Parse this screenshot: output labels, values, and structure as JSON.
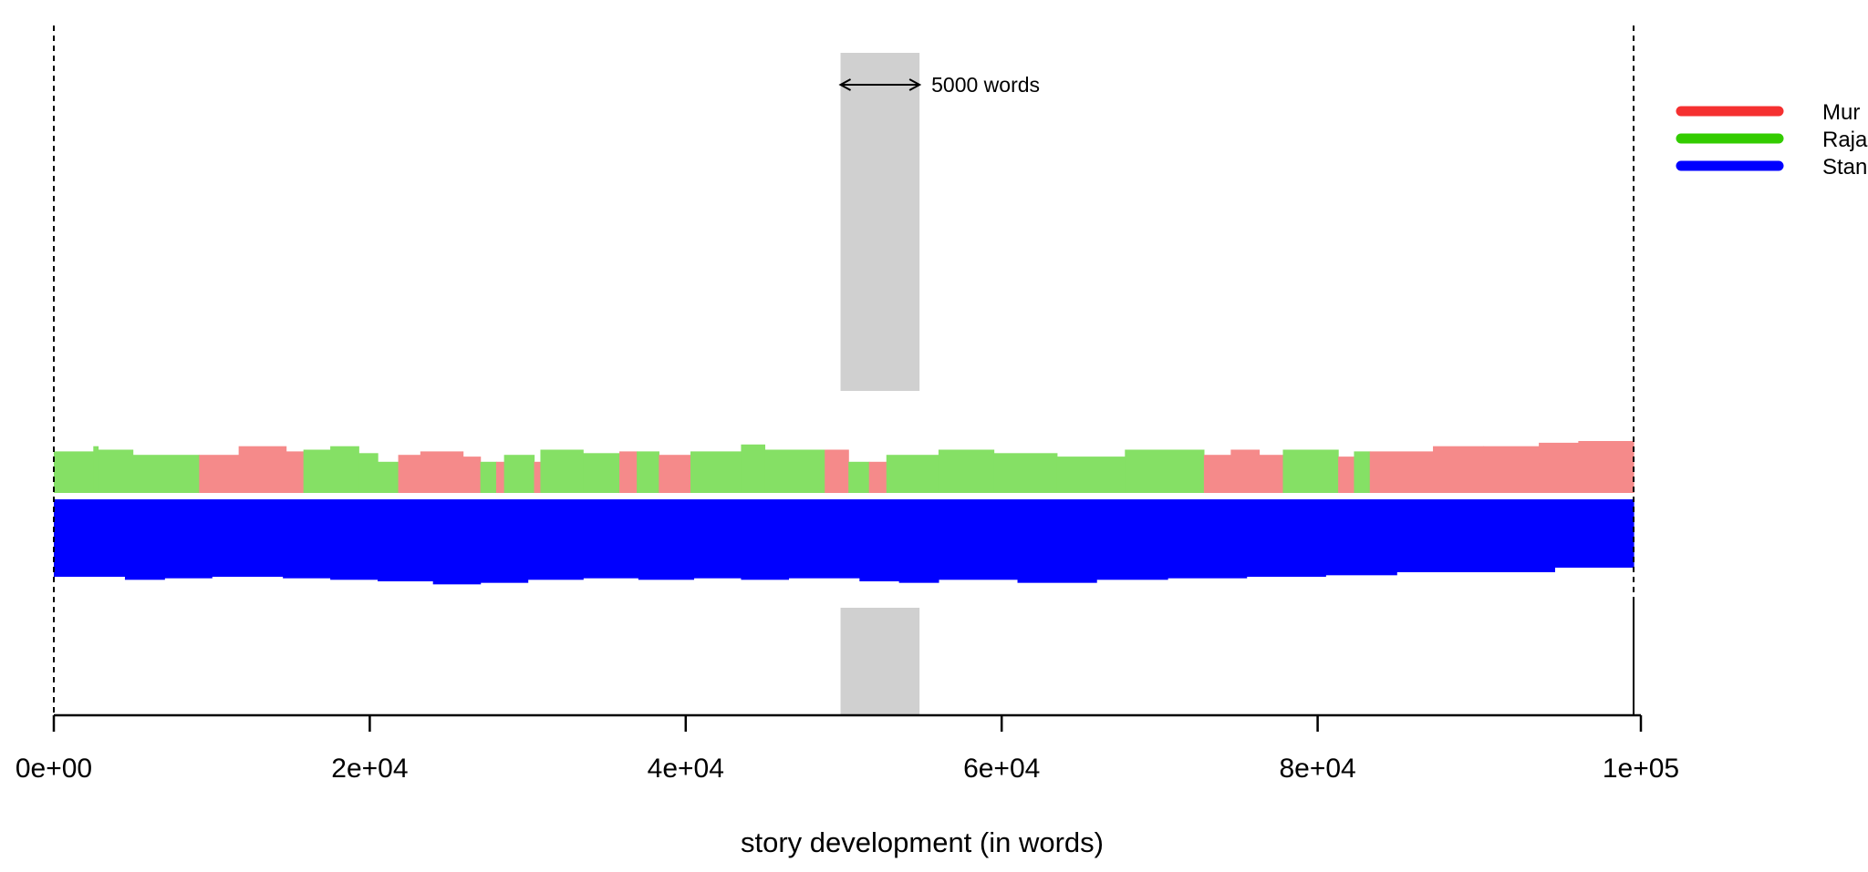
{
  "chart_data": {
    "type": "area",
    "xlabel": "story development (in words)",
    "xlim": [
      0,
      100000
    ],
    "x_ticks": [
      0,
      20000,
      40000,
      60000,
      80000,
      100000
    ],
    "x_tick_labels": [
      "0e+00",
      "2e+04",
      "4e+04",
      "6e+04",
      "8e+04",
      "1e+05"
    ],
    "legend": {
      "placement": "right",
      "entries": [
        {
          "name": "Mur",
          "color": "#f53030"
        },
        {
          "name": "Raja",
          "color": "#33cc00"
        },
        {
          "name": "Stan",
          "color": "#0000ff"
        }
      ]
    },
    "window_marker": {
      "x_start": 49800,
      "x_end": 54800,
      "label": "5000 words",
      "color": "#d0d0d0"
    },
    "upper_band": {
      "colors": {
        "Mur": "#f58a8a",
        "Raja": "#85e065"
      },
      "max_height": 30,
      "segments": [
        {
          "x0": 0,
          "x1": 2500,
          "leader": "Raja",
          "height": 24
        },
        {
          "x0": 2500,
          "x1": 2800,
          "leader": "Raja",
          "height": 27
        },
        {
          "x0": 2800,
          "x1": 5000,
          "leader": "Raja",
          "height": 25
        },
        {
          "x0": 5000,
          "x1": 9200,
          "leader": "Raja",
          "height": 22
        },
        {
          "x0": 9200,
          "x1": 11700,
          "leader": "Mur",
          "height": 22
        },
        {
          "x0": 11700,
          "x1": 14700,
          "leader": "Mur",
          "height": 27
        },
        {
          "x0": 14700,
          "x1": 15800,
          "leader": "Mur",
          "height": 24
        },
        {
          "x0": 15800,
          "x1": 17500,
          "leader": "Raja",
          "height": 25
        },
        {
          "x0": 17500,
          "x1": 19300,
          "leader": "Raja",
          "height": 27
        },
        {
          "x0": 19300,
          "x1": 20500,
          "leader": "Raja",
          "height": 23
        },
        {
          "x0": 20500,
          "x1": 21800,
          "leader": "Raja",
          "height": 18
        },
        {
          "x0": 21800,
          "x1": 23200,
          "leader": "Mur",
          "height": 22
        },
        {
          "x0": 23200,
          "x1": 25900,
          "leader": "Mur",
          "height": 24
        },
        {
          "x0": 25900,
          "x1": 27000,
          "leader": "Mur",
          "height": 21
        },
        {
          "x0": 27000,
          "x1": 28000,
          "leader": "Raja",
          "height": 18
        },
        {
          "x0": 28000,
          "x1": 28500,
          "leader": "Mur",
          "height": 18
        },
        {
          "x0": 28500,
          "x1": 30400,
          "leader": "Raja",
          "height": 22
        },
        {
          "x0": 30400,
          "x1": 30800,
          "leader": "Mur",
          "height": 18
        },
        {
          "x0": 30800,
          "x1": 33500,
          "leader": "Raja",
          "height": 25
        },
        {
          "x0": 33500,
          "x1": 35800,
          "leader": "Raja",
          "height": 23
        },
        {
          "x0": 35800,
          "x1": 36900,
          "leader": "Mur",
          "height": 24
        },
        {
          "x0": 36900,
          "x1": 38300,
          "leader": "Raja",
          "height": 24
        },
        {
          "x0": 38300,
          "x1": 40300,
          "leader": "Mur",
          "height": 22
        },
        {
          "x0": 40300,
          "x1": 43500,
          "leader": "Raja",
          "height": 24
        },
        {
          "x0": 43500,
          "x1": 45000,
          "leader": "Raja",
          "height": 28
        },
        {
          "x0": 45000,
          "x1": 48800,
          "leader": "Raja",
          "height": 25
        },
        {
          "x0": 48800,
          "x1": 50300,
          "leader": "Mur",
          "height": 25
        },
        {
          "x0": 50300,
          "x1": 51600,
          "leader": "Raja",
          "height": 18
        },
        {
          "x0": 51600,
          "x1": 52700,
          "leader": "Mur",
          "height": 18
        },
        {
          "x0": 52700,
          "x1": 56000,
          "leader": "Raja",
          "height": 22
        },
        {
          "x0": 56000,
          "x1": 59500,
          "leader": "Raja",
          "height": 25
        },
        {
          "x0": 59500,
          "x1": 63500,
          "leader": "Raja",
          "height": 23
        },
        {
          "x0": 63500,
          "x1": 67800,
          "leader": "Raja",
          "height": 21
        },
        {
          "x0": 67800,
          "x1": 72800,
          "leader": "Raja",
          "height": 25
        },
        {
          "x0": 72800,
          "x1": 74500,
          "leader": "Mur",
          "height": 22
        },
        {
          "x0": 74500,
          "x1": 76300,
          "leader": "Mur",
          "height": 25
        },
        {
          "x0": 76300,
          "x1": 77800,
          "leader": "Mur",
          "height": 22
        },
        {
          "x0": 77800,
          "x1": 81300,
          "leader": "Raja",
          "height": 25
        },
        {
          "x0": 81300,
          "x1": 82300,
          "leader": "Mur",
          "height": 21
        },
        {
          "x0": 82300,
          "x1": 83300,
          "leader": "Raja",
          "height": 24
        },
        {
          "x0": 83300,
          "x1": 87300,
          "leader": "Mur",
          "height": 24
        },
        {
          "x0": 87300,
          "x1": 90500,
          "leader": "Mur",
          "height": 27
        },
        {
          "x0": 90500,
          "x1": 94000,
          "leader": "Mur",
          "height": 27
        },
        {
          "x0": 94000,
          "x1": 96500,
          "leader": "Mur",
          "height": 29
        },
        {
          "x0": 96500,
          "x1": 100000,
          "leader": "Mur",
          "height": 30
        }
      ]
    },
    "lower_band": {
      "color": "#0000ff",
      "series": "Stan",
      "max_height": 60,
      "segments": [
        {
          "x0": 0,
          "x1": 4500,
          "height": 51
        },
        {
          "x0": 4500,
          "x1": 7000,
          "height": 53
        },
        {
          "x0": 7000,
          "x1": 10000,
          "height": 52
        },
        {
          "x0": 10000,
          "x1": 14500,
          "height": 51
        },
        {
          "x0": 14500,
          "x1": 17500,
          "height": 52
        },
        {
          "x0": 17500,
          "x1": 20500,
          "height": 53
        },
        {
          "x0": 20500,
          "x1": 24000,
          "height": 54
        },
        {
          "x0": 24000,
          "x1": 27000,
          "height": 56
        },
        {
          "x0": 27000,
          "x1": 30000,
          "height": 55
        },
        {
          "x0": 30000,
          "x1": 33500,
          "height": 53
        },
        {
          "x0": 33500,
          "x1": 37000,
          "height": 52
        },
        {
          "x0": 37000,
          "x1": 40500,
          "height": 53
        },
        {
          "x0": 40500,
          "x1": 43500,
          "height": 52
        },
        {
          "x0": 43500,
          "x1": 46500,
          "height": 53
        },
        {
          "x0": 46500,
          "x1": 51000,
          "height": 52
        },
        {
          "x0": 51000,
          "x1": 53500,
          "height": 54
        },
        {
          "x0": 53500,
          "x1": 56000,
          "height": 55
        },
        {
          "x0": 56000,
          "x1": 61000,
          "height": 53
        },
        {
          "x0": 61000,
          "x1": 66000,
          "height": 55
        },
        {
          "x0": 66000,
          "x1": 70500,
          "height": 53
        },
        {
          "x0": 70500,
          "x1": 75500,
          "height": 52
        },
        {
          "x0": 75500,
          "x1": 80500,
          "height": 51
        },
        {
          "x0": 80500,
          "x1": 85000,
          "height": 50
        },
        {
          "x0": 85000,
          "x1": 90000,
          "height": 48
        },
        {
          "x0": 90000,
          "x1": 95000,
          "height": 48
        },
        {
          "x0": 95000,
          "x1": 100000,
          "height": 45
        }
      ]
    }
  }
}
